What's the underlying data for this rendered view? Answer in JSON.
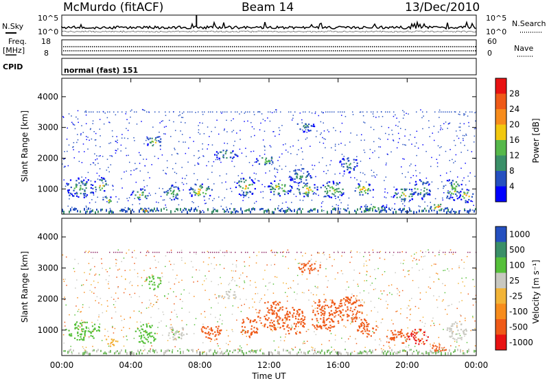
{
  "header": {
    "station": "McMurdo (fitACF)",
    "beam": "Beam 14",
    "date": "13/Dec/2010"
  },
  "top_panels": {
    "nsky_label": "N.Sky",
    "nsky_ticks": [
      "10^5",
      "10^0"
    ],
    "nsearch_label": "N.Search",
    "nsearch_ticks": [
      "10^5",
      "10^0"
    ],
    "freq_label_1": "Freq.",
    "freq_label_2": "[MHz]",
    "freq_ticks": [
      "18",
      "8"
    ],
    "nave_label": "Nave",
    "nave_ticks": [
      "60",
      "0"
    ],
    "cpid_label": "CPID",
    "cpid_value": "normal (fast) 151"
  },
  "colors": {
    "power_scale": [
      "#0000ff",
      "#2550c0",
      "#3a8f68",
      "#56b84a",
      "#f2c80f",
      "#f78c1c",
      "#ef5a18",
      "#e81212"
    ],
    "velocity_scale": [
      "#e81212",
      "#ef5a18",
      "#f78c1c",
      "#f2b437",
      "#c8c8c0",
      "#56c03a",
      "#3a8f68",
      "#2550c0"
    ]
  },
  "chart_data": [
    {
      "type": "heatmap",
      "name": "power",
      "xlabel": "",
      "ylabel": "Slant Range [km]",
      "x_ticks": [
        "00:00",
        "04:00",
        "08:00",
        "12:00",
        "16:00",
        "20:00",
        "00:00"
      ],
      "y_ticks": [
        "1000",
        "2000",
        "3000",
        "4000"
      ],
      "colorbar_label": "Power [dB]",
      "colorbar_ticks": [
        "4",
        "8",
        "12",
        "16",
        "20",
        "24",
        "28"
      ],
      "xlim_hours": [
        0,
        24
      ],
      "ylim_km": [
        180,
        4600
      ],
      "echo_patches": [
        {
          "x": 1.0,
          "y": 1050,
          "w": 1.8,
          "h": 650,
          "v": 14
        },
        {
          "x": 2.2,
          "y": 1150,
          "w": 0.8,
          "h": 500,
          "v": 22
        },
        {
          "x": 2.6,
          "y": 650,
          "w": 0.6,
          "h": 300,
          "v": 24
        },
        {
          "x": 4.5,
          "y": 850,
          "w": 1.0,
          "h": 400,
          "v": 20
        },
        {
          "x": 4.8,
          "y": 330,
          "w": 0.9,
          "h": 150,
          "v": 28
        },
        {
          "x": 5.3,
          "y": 2550,
          "w": 0.9,
          "h": 450,
          "v": 18
        },
        {
          "x": 6.4,
          "y": 900,
          "w": 1.2,
          "h": 500,
          "v": 16
        },
        {
          "x": 8.0,
          "y": 950,
          "w": 1.4,
          "h": 500,
          "v": 22
        },
        {
          "x": 9.5,
          "y": 2150,
          "w": 1.4,
          "h": 350,
          "v": 14
        },
        {
          "x": 10.6,
          "y": 1100,
          "w": 1.2,
          "h": 650,
          "v": 20
        },
        {
          "x": 11.8,
          "y": 1950,
          "w": 1.2,
          "h": 350,
          "v": 16
        },
        {
          "x": 12.6,
          "y": 1050,
          "w": 1.4,
          "h": 550,
          "v": 20
        },
        {
          "x": 13.8,
          "y": 1450,
          "w": 1.4,
          "h": 550,
          "v": 14
        },
        {
          "x": 14.2,
          "y": 1000,
          "w": 1.2,
          "h": 500,
          "v": 22
        },
        {
          "x": 14.0,
          "y": 3050,
          "w": 1.2,
          "h": 350,
          "v": 12
        },
        {
          "x": 15.6,
          "y": 1000,
          "w": 1.6,
          "h": 550,
          "v": 18
        },
        {
          "x": 16.6,
          "y": 1800,
          "w": 1.2,
          "h": 500,
          "v": 12
        },
        {
          "x": 17.4,
          "y": 1000,
          "w": 1.2,
          "h": 450,
          "v": 22
        },
        {
          "x": 18.0,
          "y": 400,
          "w": 1.8,
          "h": 200,
          "v": 14
        },
        {
          "x": 19.8,
          "y": 850,
          "w": 1.4,
          "h": 450,
          "v": 20
        },
        {
          "x": 20.8,
          "y": 1000,
          "w": 1.2,
          "h": 650,
          "v": 14
        },
        {
          "x": 21.8,
          "y": 420,
          "w": 1.0,
          "h": 280,
          "v": 26
        },
        {
          "x": 22.6,
          "y": 1000,
          "w": 1.2,
          "h": 700,
          "v": 18
        },
        {
          "x": 23.4,
          "y": 800,
          "w": 0.8,
          "h": 450,
          "v": 22
        }
      ]
    },
    {
      "type": "heatmap",
      "name": "velocity",
      "xlabel": "Time UT",
      "ylabel": "Slant Range [km]",
      "x_ticks": [
        "00:00",
        "04:00",
        "08:00",
        "12:00",
        "16:00",
        "20:00",
        "00:00"
      ],
      "y_ticks": [
        "1000",
        "2000",
        "3000",
        "4000"
      ],
      "colorbar_label": "Velocity [m s⁻¹]",
      "colorbar_ticks": [
        "1000",
        "500",
        "100",
        "25",
        "-25",
        "-100",
        "-500",
        "-1000"
      ],
      "xlim_hours": [
        0,
        24
      ],
      "ylim_km": [
        180,
        4600
      ],
      "echo_patches": [
        {
          "x": 1.2,
          "y": 1000,
          "w": 2.0,
          "h": 650,
          "v": 300
        },
        {
          "x": 2.8,
          "y": 650,
          "w": 0.8,
          "h": 300,
          "v": 0
        },
        {
          "x": 4.8,
          "y": 900,
          "w": 1.4,
          "h": 650,
          "v": 300
        },
        {
          "x": 5.3,
          "y": 2550,
          "w": 1.0,
          "h": 450,
          "v": 250
        },
        {
          "x": 6.6,
          "y": 900,
          "w": 1.2,
          "h": 500,
          "v": 80
        },
        {
          "x": 8.6,
          "y": 950,
          "w": 1.4,
          "h": 500,
          "v": -200
        },
        {
          "x": 9.6,
          "y": 2150,
          "w": 1.2,
          "h": 300,
          "v": 60
        },
        {
          "x": 10.8,
          "y": 1100,
          "w": 1.2,
          "h": 650,
          "v": -300
        },
        {
          "x": 12.2,
          "y": 1500,
          "w": 1.8,
          "h": 950,
          "v": -300
        },
        {
          "x": 13.4,
          "y": 1300,
          "w": 1.4,
          "h": 900,
          "v": -300
        },
        {
          "x": 14.3,
          "y": 3050,
          "w": 1.4,
          "h": 400,
          "v": -200
        },
        {
          "x": 15.2,
          "y": 1500,
          "w": 1.8,
          "h": 1100,
          "v": -300
        },
        {
          "x": 16.6,
          "y": 1700,
          "w": 1.6,
          "h": 900,
          "v": -300
        },
        {
          "x": 17.6,
          "y": 1100,
          "w": 1.2,
          "h": 600,
          "v": -250
        },
        {
          "x": 19.4,
          "y": 800,
          "w": 1.4,
          "h": 500,
          "v": -300
        },
        {
          "x": 20.6,
          "y": 800,
          "w": 1.2,
          "h": 550,
          "v": -600
        },
        {
          "x": 21.8,
          "y": 450,
          "w": 1.0,
          "h": 300,
          "v": -300
        },
        {
          "x": 22.8,
          "y": 1000,
          "w": 1.2,
          "h": 650,
          "v": 60
        }
      ]
    }
  ]
}
